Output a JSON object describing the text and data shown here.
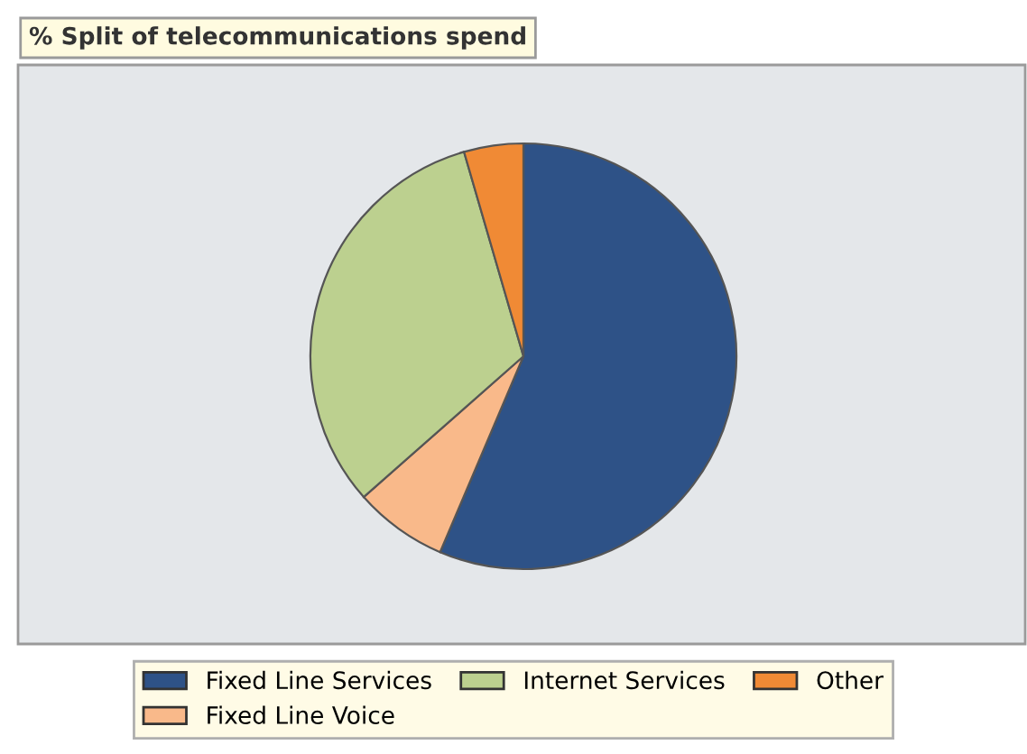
{
  "chart_data": {
    "type": "pie",
    "title": "% Split of telecommunications spend",
    "categories": [
      "Fixed Line Services",
      "Fixed Line Voice",
      "Internet Services",
      "Other"
    ],
    "values": [
      56.4,
      7.1,
      32.0,
      4.5
    ],
    "colors": [
      "#2e5287",
      "#f9b98a",
      "#bcd08f",
      "#f08a35"
    ],
    "legend": "bottom"
  }
}
